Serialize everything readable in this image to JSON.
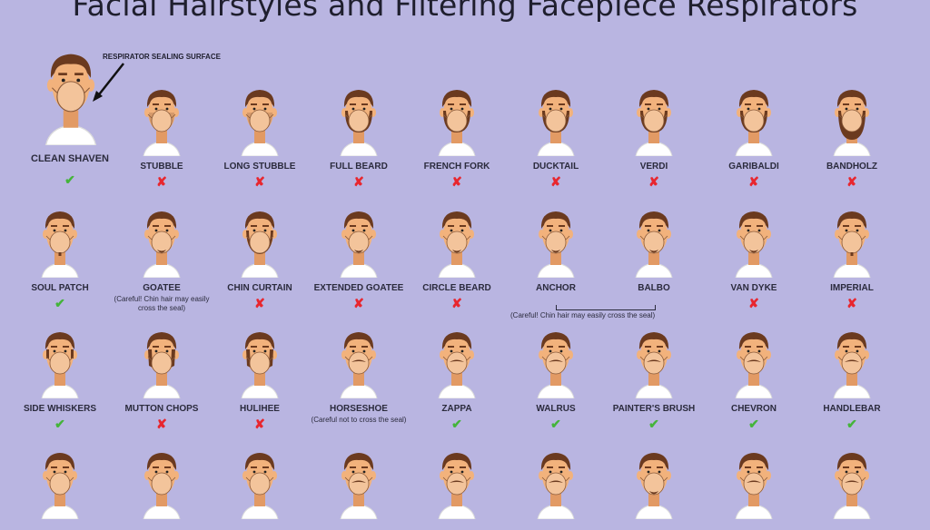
{
  "title": "Facial Hairstyles and Filtering Facepiece Respirators",
  "annotation": "RESPIRATOR SEALING SURFACE",
  "colors": {
    "background": "#b9b5e1",
    "skin": "#f2b27c",
    "hair": "#6b3a1f",
    "mask": "#f3c49b",
    "ok": "#44b43a",
    "no": "#e8262e"
  },
  "clean_shaven": {
    "label": "CLEAN SHAVEN",
    "ok": true
  },
  "row1": [
    {
      "label": "STUBBLE",
      "ok": false,
      "beard": "stubble"
    },
    {
      "label": "LONG STUBBLE",
      "ok": false,
      "beard": "stubble"
    },
    {
      "label": "FULL BEARD",
      "ok": false,
      "beard": "full"
    },
    {
      "label": "FRENCH FORK",
      "ok": false,
      "beard": "full"
    },
    {
      "label": "DUCKTAIL",
      "ok": false,
      "beard": "full"
    },
    {
      "label": "VERDI",
      "ok": false,
      "beard": "full"
    },
    {
      "label": "GARIBALDI",
      "ok": false,
      "beard": "full"
    },
    {
      "label": "BANDHOLZ",
      "ok": false,
      "beard": "long"
    }
  ],
  "row2": [
    {
      "label": "SOUL PATCH",
      "ok": true,
      "beard": "patch"
    },
    {
      "label": "GOATEE",
      "ok": null,
      "note": "(Careful! Chin hair may easily cross the seal)",
      "beard": "goatee"
    },
    {
      "label": "CHIN CURTAIN",
      "ok": false,
      "beard": "curtain"
    },
    {
      "label": "EXTENDED GOATEE",
      "ok": false,
      "beard": "goatee"
    },
    {
      "label": "CIRCLE BEARD",
      "ok": false,
      "beard": "goatee"
    },
    {
      "label": "ANCHOR",
      "ok": null,
      "beard": "goatee"
    },
    {
      "label": "BALBO",
      "ok": null,
      "beard": "goatee"
    },
    {
      "label": "VAN DYKE",
      "ok": false,
      "beard": "goatee"
    },
    {
      "label": "IMPERIAL",
      "ok": false,
      "beard": "patch"
    }
  ],
  "anchor_balbo_note": "(Careful! Chin hair may easily cross the seal)",
  "row3": [
    {
      "label": "SIDE WHISKERS",
      "ok": true,
      "beard": "whiskers"
    },
    {
      "label": "MUTTON CHOPS",
      "ok": false,
      "beard": "chops"
    },
    {
      "label": "HULIHEE",
      "ok": false,
      "beard": "chops"
    },
    {
      "label": "HORSESHOE",
      "ok": null,
      "note": "(Careful not to cross the seal)",
      "beard": "mustache"
    },
    {
      "label": "ZAPPA",
      "ok": true,
      "beard": "mustache"
    },
    {
      "label": "WALRUS",
      "ok": true,
      "beard": "mustache"
    },
    {
      "label": "PAINTER'S BRUSH",
      "ok": true,
      "beard": "mustache"
    },
    {
      "label": "CHEVRON",
      "ok": true,
      "beard": "mustache"
    },
    {
      "label": "HANDLEBAR",
      "ok": true,
      "beard": "mustache"
    }
  ],
  "row4_count": 9
}
